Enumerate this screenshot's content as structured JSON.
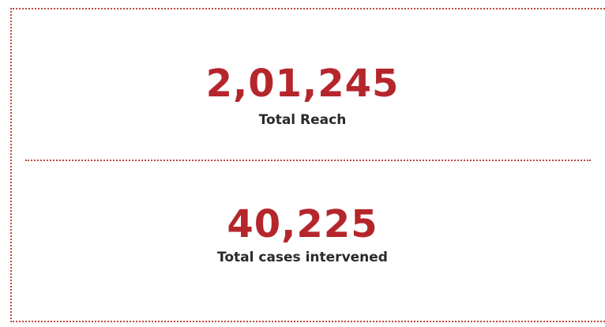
{
  "stats": [
    {
      "value": "2,01,245",
      "label": "Total Reach"
    },
    {
      "value": "40,225",
      "label": "Total cases intervened"
    }
  ]
}
